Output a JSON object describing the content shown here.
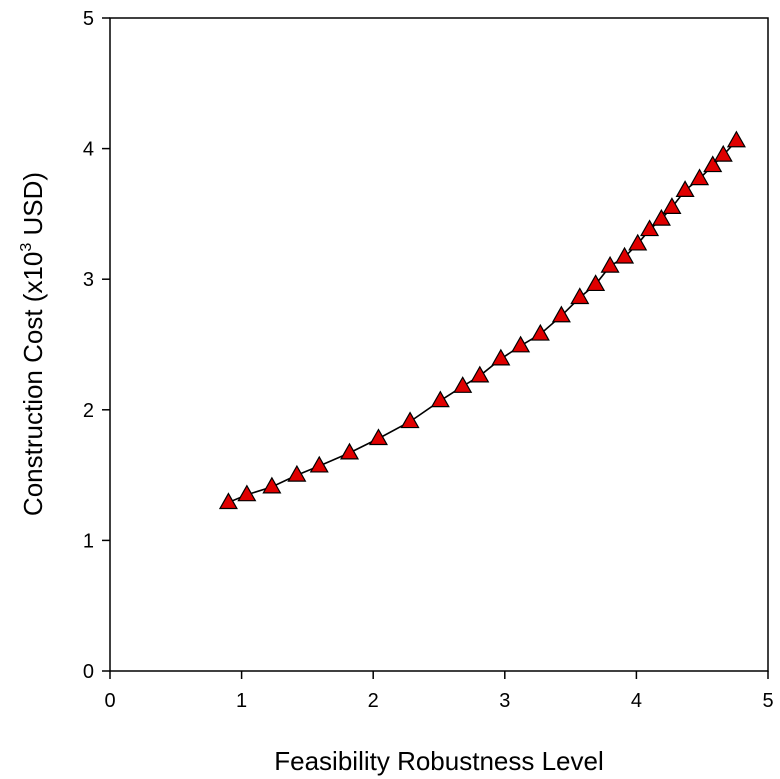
{
  "chart_data": {
    "type": "line",
    "title": "",
    "xlabel": "Feasibility Robustness Level",
    "ylabel_prefix": "Construction Cost (x10",
    "ylabel_sup": "3",
    "ylabel_suffix": " USD)",
    "xlim": [
      0,
      5
    ],
    "ylim": [
      0,
      5
    ],
    "xticks": [
      "0",
      "1",
      "2",
      "3",
      "4",
      "5"
    ],
    "yticks": [
      "0",
      "1",
      "2",
      "3",
      "4",
      "5"
    ],
    "grid": false,
    "legend": "none",
    "marker": "triangle",
    "colors": {
      "marker_fill": "#e00000",
      "line": "#000000"
    },
    "series": [
      {
        "x": [
          0.9,
          1.04,
          1.23,
          1.42,
          1.59,
          1.82,
          2.04,
          2.28,
          2.51,
          2.68,
          2.81,
          2.97,
          3.12,
          3.27,
          3.43,
          3.57,
          3.69,
          3.8,
          3.91,
          4.01,
          4.1,
          4.19,
          4.27,
          4.37,
          4.48,
          4.58,
          4.66,
          4.76
        ],
        "y": [
          1.29,
          1.35,
          1.41,
          1.5,
          1.57,
          1.67,
          1.78,
          1.91,
          2.07,
          2.18,
          2.26,
          2.39,
          2.49,
          2.58,
          2.72,
          2.86,
          2.96,
          3.1,
          3.17,
          3.27,
          3.38,
          3.46,
          3.55,
          3.68,
          3.77,
          3.87,
          3.95,
          4.06
        ]
      }
    ]
  }
}
